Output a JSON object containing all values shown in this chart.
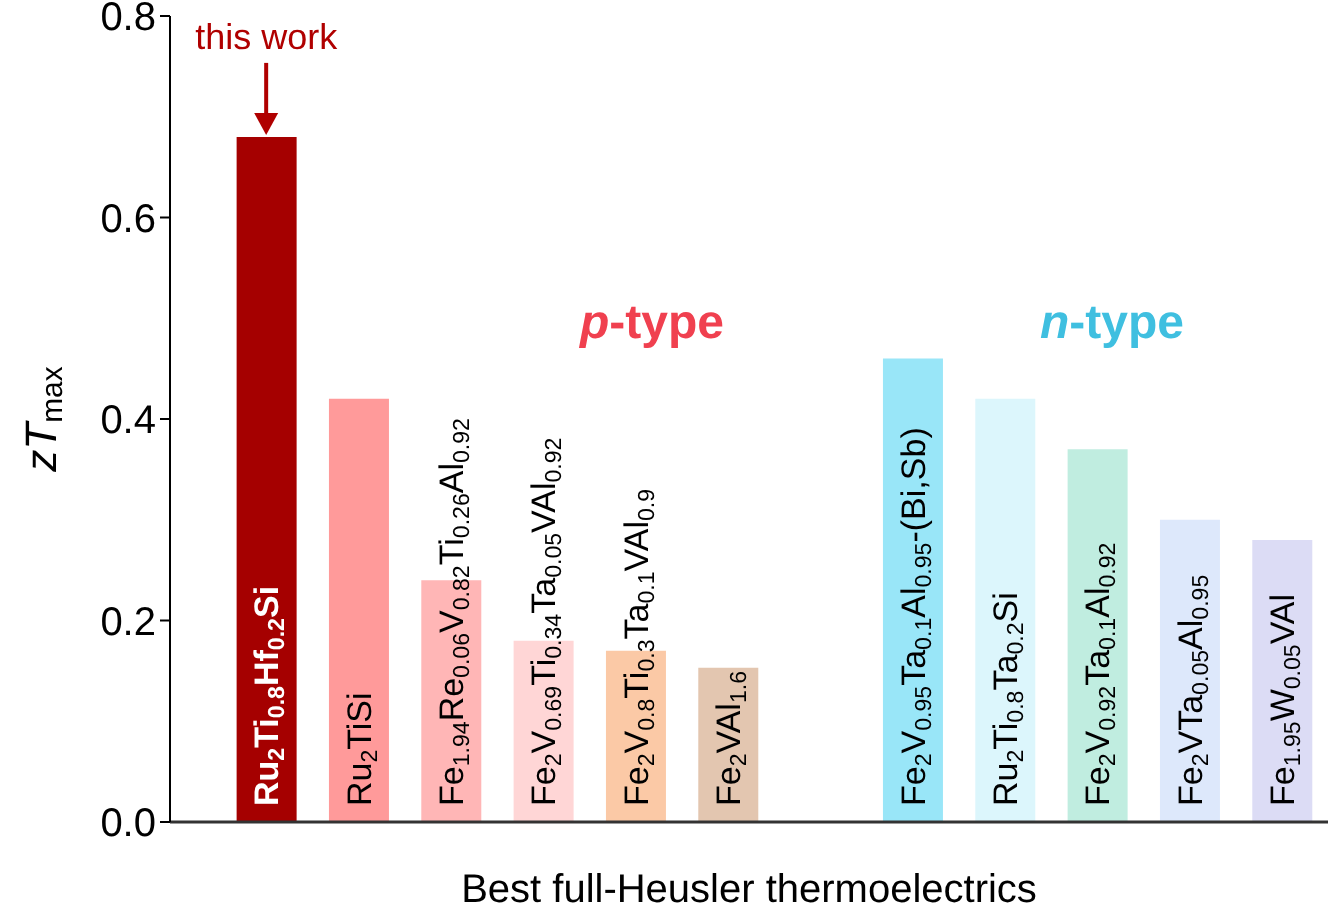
{
  "chart_data": {
    "type": "bar",
    "xlabel": "Best full-Heusler thermoelectrics",
    "ylabel": "zT$_{max}$",
    "categories": [
      "Ru$_{2}$Ti$_{0.8}$Hf$_{0.2}$Si",
      "Ru$_{2}$TiSi",
      "Fe$_{1.94}$Re$_{0.06}$V$_{0.82}$Ti$_{0.26}$Al$_{0.92}$",
      "Fe$_{2}$V$_{0.69}$Ti$_{0.34}$Ta$_{0.05}$VAl$_{0.92}$",
      "Fe$_{2}$V$_{0.8}$Ti$_{0.3}$Ta$_{0.1}$VAl$_{0.9}$",
      "Fe$_{2}$VAl$_{1.6}$",
      null,
      "Fe$_{2}$V$_{0.95}$Ta$_{0.1}$Al$_{0.95}$-(Bi,Sb)",
      "Ru$_{2}$Ti$_{0.8}$Ta$_{0.2}$Si",
      "Fe$_{2}$V$_{0.92}$Ta$_{0.1}$Al$_{0.92}$",
      "Fe$_{2}$VTa$_{0.05}$Al$_{0.95}$",
      "Fe$_{1.95}$W$_{0.05}$VAl"
    ],
    "values": [
      0.68,
      0.42,
      0.24,
      0.18,
      0.17,
      0.153,
      null,
      0.46,
      0.42,
      0.37,
      0.3,
      0.28
    ],
    "colors": [
      "#a50000",
      "#ff9a9a",
      "#ffb6b6",
      "#ffd6d6",
      "#fbc9a6",
      "#e3c6b0",
      null,
      "#99e6f8",
      "#dcf6fc",
      "#c0ede0",
      "#dde8fb",
      "#dcdcf5"
    ],
    "ylim": [
      0,
      0.8
    ],
    "yticks": [
      {
        "value": 0,
        "label": "0.0"
      },
      {
        "value": 0.2,
        "label": "0.2"
      },
      {
        "value": 0.4,
        "label": "0.4"
      },
      {
        "value": 0.6,
        "label": "0.6"
      },
      {
        "value": 0.8,
        "label": "0.8"
      }
    ],
    "annotations": [
      {
        "text": "this work",
        "x": "Ru$_{2}$Ti$_{0.8}$Hf$_{0.2}$Si",
        "y": 0.68
      },
      "p-type",
      "n-type"
    ],
    "grid": false,
    "legend": false
  }
}
